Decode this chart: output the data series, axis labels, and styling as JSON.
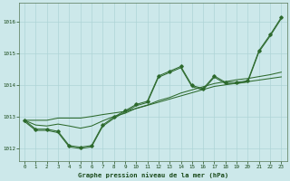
{
  "background_color": "#cce8ea",
  "grid_color": "#aed4d6",
  "line_color": "#2d6a2d",
  "title": "Graphe pression niveau de la mer (hPa)",
  "xlim": [
    -0.5,
    23.5
  ],
  "ylim": [
    1011.6,
    1016.6
  ],
  "yticks": [
    1012,
    1013,
    1014,
    1015,
    1016
  ],
  "xticks": [
    0,
    1,
    2,
    3,
    4,
    5,
    6,
    7,
    8,
    9,
    10,
    11,
    12,
    13,
    14,
    15,
    16,
    17,
    18,
    19,
    20,
    21,
    22,
    23
  ],
  "jagged": [
    1012.9,
    1012.62,
    1012.62,
    1012.55,
    1012.1,
    1012.05,
    1012.1,
    1012.75,
    1013.0,
    1013.2,
    1013.4,
    1013.5,
    1014.3,
    1014.45,
    1014.6,
    1014.0,
    1013.9,
    1014.3,
    1014.1,
    1014.1,
    1014.15,
    1015.1,
    1015.6,
    1016.15
  ],
  "trend1": [
    1012.9,
    1012.75,
    1012.72,
    1012.78,
    1012.72,
    1012.65,
    1012.72,
    1012.88,
    1013.02,
    1013.12,
    1013.28,
    1013.38,
    1013.52,
    1013.62,
    1013.76,
    1013.86,
    1013.96,
    1014.06,
    1014.12,
    1014.18,
    1014.22,
    1014.28,
    1014.34,
    1014.42
  ],
  "trend2": [
    1012.9,
    1012.9,
    1012.9,
    1012.97,
    1012.97,
    1012.97,
    1013.02,
    1013.08,
    1013.13,
    1013.18,
    1013.27,
    1013.37,
    1013.47,
    1013.57,
    1013.67,
    1013.77,
    1013.87,
    1013.97,
    1014.02,
    1014.07,
    1014.12,
    1014.17,
    1014.22,
    1014.27
  ]
}
